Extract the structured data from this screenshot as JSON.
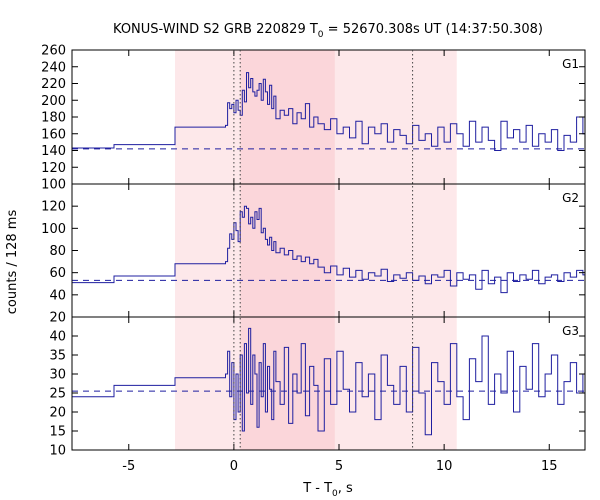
{
  "chart_data": {
    "type": "line",
    "title": {
      "main": "KONUS-WIND S2 GRB 220829 T",
      "sub": "0",
      "rest": " = 52670.308s UT (14:37:50.308)"
    },
    "xlabel": {
      "main": "T - T",
      "sub": "0",
      "rest": ", s"
    },
    "ylabel": "counts / 128 ms",
    "xlim": [
      -7.7,
      16.7
    ],
    "xticks": [
      -5,
      0,
      5,
      10,
      15
    ],
    "xtick_labels": [
      "-5",
      "0",
      "5",
      "10",
      "15"
    ],
    "shaded_regions": [
      {
        "x0": -2.8,
        "x1": 10.6,
        "color": "#fde8ea"
      },
      {
        "x0": 0.3,
        "x1": 4.8,
        "color": "#fbd6da"
      }
    ],
    "vlines_dotted": [
      0.0,
      0.3,
      8.5
    ],
    "line_color": "#1f1fa0",
    "grid": false,
    "panels": [
      {
        "label": "G1",
        "ylim": [
          100,
          260
        ],
        "yticks": [
          100,
          120,
          140,
          160,
          180,
          200,
          220,
          240,
          260
        ],
        "ytick_labels": [
          "100",
          "120",
          "140",
          "160",
          "180",
          "200",
          "220",
          "240",
          "260"
        ],
        "background": 142,
        "x": [
          -7.7,
          -5.7,
          -2.8,
          -0.4,
          -0.3,
          -0.2,
          -0.1,
          0.0,
          0.1,
          0.2,
          0.3,
          0.4,
          0.5,
          0.6,
          0.7,
          0.8,
          0.9,
          1.0,
          1.1,
          1.2,
          1.3,
          1.4,
          1.5,
          1.6,
          1.7,
          1.8,
          1.9,
          2.0,
          2.2,
          2.4,
          2.6,
          2.8,
          3.0,
          3.2,
          3.4,
          3.6,
          3.8,
          4.0,
          4.3,
          4.6,
          4.9,
          5.2,
          5.5,
          5.8,
          6.1,
          6.4,
          6.7,
          7.0,
          7.3,
          7.6,
          7.9,
          8.2,
          8.5,
          8.8,
          9.1,
          9.4,
          9.7,
          10.0,
          10.3,
          10.6,
          10.9,
          11.2,
          11.5,
          11.8,
          12.1,
          12.4,
          12.7,
          13.0,
          13.3,
          13.6,
          13.9,
          14.2,
          14.5,
          14.8,
          15.1,
          15.4,
          15.7,
          16.0,
          16.3,
          16.6
        ],
        "y": [
          143,
          147,
          168,
          170,
          197,
          190,
          195,
          185,
          200,
          188,
          182,
          212,
          198,
          233,
          215,
          226,
          210,
          205,
          212,
          220,
          200,
          225,
          210,
          195,
          218,
          190,
          205,
          178,
          188,
          182,
          190,
          172,
          185,
          178,
          196,
          168,
          180,
          172,
          165,
          178,
          160,
          168,
          155,
          175,
          148,
          168,
          160,
          172,
          150,
          165,
          158,
          148,
          170,
          152,
          160,
          145,
          168,
          150,
          172,
          160,
          145,
          175,
          150,
          168,
          152,
          140,
          175,
          155,
          165,
          150,
          170,
          145,
          160,
          150,
          165,
          140,
          158,
          150,
          180,
          160
        ]
      },
      {
        "label": "G2",
        "ylim": [
          20,
          140
        ],
        "yticks": [
          20,
          40,
          60,
          80,
          100,
          120
        ],
        "ytick_labels": [
          "20",
          "40",
          "60",
          "80",
          "100",
          "120"
        ],
        "background": 53,
        "x": [
          -7.7,
          -5.7,
          -2.8,
          -0.4,
          -0.3,
          -0.2,
          -0.1,
          0.0,
          0.1,
          0.2,
          0.3,
          0.4,
          0.5,
          0.6,
          0.7,
          0.8,
          0.9,
          1.0,
          1.1,
          1.2,
          1.3,
          1.4,
          1.5,
          1.6,
          1.7,
          1.8,
          1.9,
          2.0,
          2.2,
          2.4,
          2.6,
          2.8,
          3.0,
          3.2,
          3.4,
          3.6,
          3.8,
          4.0,
          4.3,
          4.6,
          4.9,
          5.2,
          5.5,
          5.8,
          6.1,
          6.4,
          6.7,
          7.0,
          7.3,
          7.6,
          7.9,
          8.2,
          8.5,
          8.8,
          9.1,
          9.4,
          9.7,
          10.0,
          10.3,
          10.6,
          10.9,
          11.2,
          11.5,
          11.8,
          12.1,
          12.4,
          12.7,
          13.0,
          13.3,
          13.6,
          13.9,
          14.2,
          14.5,
          14.8,
          15.1,
          15.4,
          15.7,
          16.0,
          16.3,
          16.6
        ],
        "y": [
          51,
          57,
          68,
          70,
          82,
          95,
          90,
          105,
          98,
          88,
          115,
          110,
          120,
          118,
          104,
          110,
          100,
          115,
          108,
          118,
          96,
          100,
          90,
          85,
          92,
          80,
          88,
          78,
          82,
          76,
          80,
          72,
          75,
          70,
          74,
          68,
          72,
          65,
          60,
          66,
          58,
          64,
          56,
          62,
          54,
          60,
          57,
          63,
          52,
          58,
          55,
          60,
          53,
          57,
          50,
          58,
          56,
          62,
          48,
          60,
          54,
          58,
          45,
          62,
          50,
          56,
          42,
          60,
          52,
          58,
          54,
          62,
          50,
          56,
          58,
          52,
          60,
          56,
          62,
          58
        ]
      },
      {
        "label": "G3",
        "ylim": [
          10,
          45
        ],
        "yticks": [
          10,
          15,
          20,
          25,
          30,
          35,
          40
        ],
        "ytick_labels": [
          "10",
          "15",
          "20",
          "25",
          "30",
          "35",
          "40"
        ],
        "background": 25.5,
        "x": [
          -7.7,
          -5.7,
          -2.8,
          -0.4,
          -0.3,
          -0.2,
          -0.1,
          0.0,
          0.1,
          0.2,
          0.3,
          0.4,
          0.5,
          0.6,
          0.7,
          0.8,
          0.9,
          1.0,
          1.1,
          1.2,
          1.3,
          1.4,
          1.5,
          1.6,
          1.7,
          1.8,
          1.9,
          2.0,
          2.2,
          2.4,
          2.6,
          2.8,
          3.0,
          3.2,
          3.4,
          3.6,
          3.8,
          4.0,
          4.3,
          4.6,
          4.9,
          5.2,
          5.5,
          5.8,
          6.1,
          6.4,
          6.7,
          7.0,
          7.3,
          7.6,
          7.9,
          8.2,
          8.5,
          8.8,
          9.1,
          9.4,
          9.7,
          10.0,
          10.3,
          10.6,
          10.9,
          11.2,
          11.5,
          11.8,
          12.1,
          12.4,
          12.7,
          13.0,
          13.3,
          13.6,
          13.9,
          14.2,
          14.5,
          14.8,
          15.1,
          15.4,
          15.7,
          16.0,
          16.3,
          16.6
        ],
        "y": [
          24,
          27,
          29,
          30,
          36,
          24,
          33,
          18,
          30,
          20,
          35,
          15,
          38,
          25,
          42,
          22,
          35,
          30,
          16,
          33,
          24,
          38,
          20,
          32,
          26,
          18,
          36,
          28,
          22,
          37,
          17,
          30,
          25,
          38,
          19,
          32,
          27,
          15,
          34,
          22,
          36,
          26,
          20,
          33,
          24,
          30,
          18,
          35,
          27,
          22,
          32,
          20,
          37,
          25,
          14,
          33,
          28,
          22,
          38,
          24,
          18,
          34,
          28,
          40,
          22,
          30,
          25,
          36,
          20,
          32,
          26,
          38,
          24,
          30,
          35,
          22,
          28,
          33,
          25,
          30
        ]
      }
    ]
  }
}
